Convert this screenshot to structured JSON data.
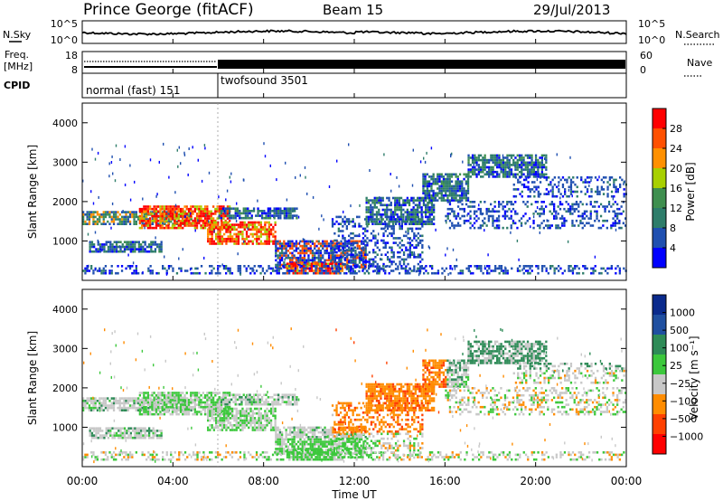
{
  "header": {
    "station": "Prince George (fitACF)",
    "beam": "Beam 15",
    "date": "29/Jul/2013"
  },
  "panels": {
    "nsky": {
      "left_label": "N.Sky",
      "left_ticks": [
        "10^5",
        "10^0"
      ],
      "right_label": "N.Search",
      "right_ticks": [
        "10^5",
        "10^0"
      ]
    },
    "freq": {
      "left_label_1": "Freq.",
      "left_label_2": "[MHz]",
      "left_ticks": [
        "18",
        "8"
      ],
      "right_label": "Nave",
      "right_ticks": [
        "60",
        "0"
      ]
    },
    "cpid": {
      "label": "CPID",
      "modes": [
        "normal (fast) 151",
        "twofsound 3501"
      ]
    }
  },
  "colors": {
    "power_scale": [
      "#0000ff",
      "#1f4fb0",
      "#2e7d6a",
      "#3f8f4f",
      "#a8d000",
      "#ff9000",
      "#ff5000",
      "#ff0000"
    ],
    "velocity_scale": [
      "#ff0000",
      "#ff4000",
      "#ff8c00",
      "#c8c8c8",
      "#3cc83c",
      "#2e8b57",
      "#1f4fa0",
      "#0a2a8c"
    ]
  },
  "chart_data": [
    {
      "type": "heatmap",
      "name": "power",
      "ylabel": "Slant Range [km]",
      "yticks": [
        "1000",
        "2000",
        "3000",
        "4000"
      ],
      "ylim": [
        0,
        4500
      ],
      "colorbar_label": "Power [dB]",
      "colorbar_ticks": [
        "4",
        "8",
        "12",
        "16",
        "20",
        "24",
        "28"
      ],
      "colorbar_range": [
        0,
        32
      ]
    },
    {
      "type": "heatmap",
      "name": "velocity",
      "ylabel": "Slant Range [km]",
      "yticks": [
        "1000",
        "2000",
        "3000",
        "4000"
      ],
      "ylim": [
        0,
        4500
      ],
      "colorbar_label": "Velocity [m s⁻¹]",
      "colorbar_ticks": [
        "1000",
        "500",
        "100",
        "25",
        "−25",
        "−100",
        "−500",
        "−1000"
      ]
    }
  ],
  "xaxis": {
    "label": "Time UT",
    "ticks": [
      "00:00",
      "04:00",
      "08:00",
      "12:00",
      "16:00",
      "20:00",
      "00:00"
    ],
    "range_hours": [
      0,
      24
    ]
  }
}
